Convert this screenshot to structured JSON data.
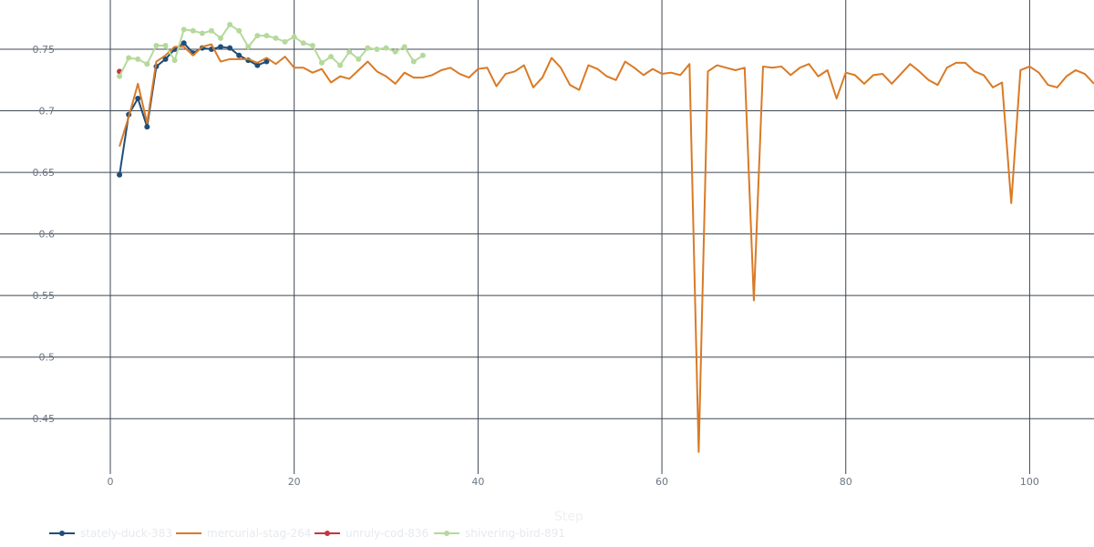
{
  "chart_data": {
    "type": "line",
    "title": "",
    "xlabel": "Step",
    "ylabel": "",
    "xlim": [
      -12,
      107
    ],
    "ylim": [
      0.405,
      0.79
    ],
    "x_ticks": [
      0,
      20,
      40,
      60,
      80,
      100
    ],
    "y_ticks": [
      0.45,
      0.5,
      0.55,
      0.6,
      0.65,
      0.7,
      0.75
    ],
    "x_tick_labels": [
      "0",
      "20",
      "40",
      "60",
      "80",
      "100"
    ],
    "y_tick_labels": [
      "0.45",
      "0.5",
      "0.55",
      "0.6",
      "0.65",
      "0.7",
      "0.75"
    ],
    "grid": true,
    "legend_position": "bottom-left",
    "series": [
      {
        "name": "stately-duck-383",
        "color": "#1f4e79",
        "markers": true,
        "x": [
          1,
          2,
          3,
          4,
          5,
          6,
          7,
          8,
          9,
          10,
          11,
          12,
          13,
          14,
          15,
          16,
          17
        ],
        "y": [
          0.648,
          0.697,
          0.71,
          0.687,
          0.736,
          0.742,
          0.75,
          0.755,
          0.747,
          0.751,
          0.75,
          0.752,
          0.751,
          0.745,
          0.741,
          0.737,
          0.74
        ]
      },
      {
        "name": "mercurial-stag-264",
        "color": "#d97a26",
        "markers": false,
        "x": [
          1,
          2,
          3,
          4,
          5,
          6,
          7,
          8,
          9,
          10,
          11,
          12,
          13,
          14,
          15,
          16,
          17,
          18,
          19,
          20,
          21,
          22,
          23,
          24,
          25,
          26,
          27,
          28,
          29,
          30,
          31,
          32,
          33,
          34,
          35,
          36,
          37,
          38,
          39,
          40,
          41,
          42,
          43,
          44,
          45,
          46,
          47,
          48,
          49,
          50,
          51,
          52,
          53,
          54,
          55,
          56,
          57,
          58,
          59,
          60,
          61,
          62,
          63,
          64,
          65,
          66,
          67,
          68,
          69,
          70,
          71,
          72,
          73,
          74,
          75,
          76,
          77,
          78,
          79,
          80,
          81,
          82,
          83,
          84,
          85,
          86,
          87,
          88,
          89,
          90,
          91,
          92,
          93,
          94,
          95,
          96,
          97,
          98,
          99,
          100,
          101,
          102,
          103,
          104,
          105,
          106,
          107
        ],
        "y": [
          0.671,
          0.695,
          0.722,
          0.69,
          0.74,
          0.745,
          0.752,
          0.752,
          0.745,
          0.752,
          0.754,
          0.74,
          0.742,
          0.742,
          0.742,
          0.739,
          0.743,
          0.738,
          0.744,
          0.735,
          0.735,
          0.731,
          0.734,
          0.723,
          0.728,
          0.726,
          0.733,
          0.74,
          0.732,
          0.728,
          0.722,
          0.731,
          0.727,
          0.727,
          0.729,
          0.733,
          0.735,
          0.73,
          0.727,
          0.734,
          0.735,
          0.72,
          0.73,
          0.732,
          0.737,
          0.719,
          0.727,
          0.743,
          0.735,
          0.721,
          0.717,
          0.737,
          0.734,
          0.728,
          0.725,
          0.74,
          0.735,
          0.729,
          0.734,
          0.73,
          0.731,
          0.729,
          0.738,
          0.423,
          0.732,
          0.737,
          0.735,
          0.733,
          0.735,
          0.546,
          0.736,
          0.735,
          0.736,
          0.729,
          0.735,
          0.738,
          0.728,
          0.733,
          0.71,
          0.731,
          0.729,
          0.722,
          0.729,
          0.73,
          0.722,
          0.73,
          0.738,
          0.732,
          0.725,
          0.721,
          0.735,
          0.739,
          0.739,
          0.732,
          0.729,
          0.719,
          0.723,
          0.625,
          0.733,
          0.736,
          0.731,
          0.721,
          0.719,
          0.728,
          0.733,
          0.73,
          0.722
        ]
      },
      {
        "name": "unruly-cod-836",
        "color": "#c8343f",
        "markers": true,
        "x": [
          1
        ],
        "y": [
          0.732
        ]
      },
      {
        "name": "shivering-bird-891",
        "color": "#b5d99c",
        "markers": true,
        "x": [
          1,
          2,
          3,
          4,
          5,
          6,
          7,
          8,
          9,
          10,
          11,
          12,
          13,
          14,
          15,
          16,
          17,
          18,
          19,
          20,
          21,
          22,
          23,
          24,
          25,
          26,
          27,
          28,
          29,
          30,
          31,
          32,
          33,
          34
        ],
        "y": [
          0.728,
          0.743,
          0.742,
          0.738,
          0.753,
          0.753,
          0.741,
          0.766,
          0.765,
          0.763,
          0.765,
          0.759,
          0.77,
          0.765,
          0.752,
          0.761,
          0.761,
          0.759,
          0.756,
          0.76,
          0.755,
          0.753,
          0.739,
          0.744,
          0.737,
          0.748,
          0.742,
          0.751,
          0.75,
          0.751,
          0.748,
          0.752,
          0.74,
          0.745
        ]
      }
    ]
  }
}
